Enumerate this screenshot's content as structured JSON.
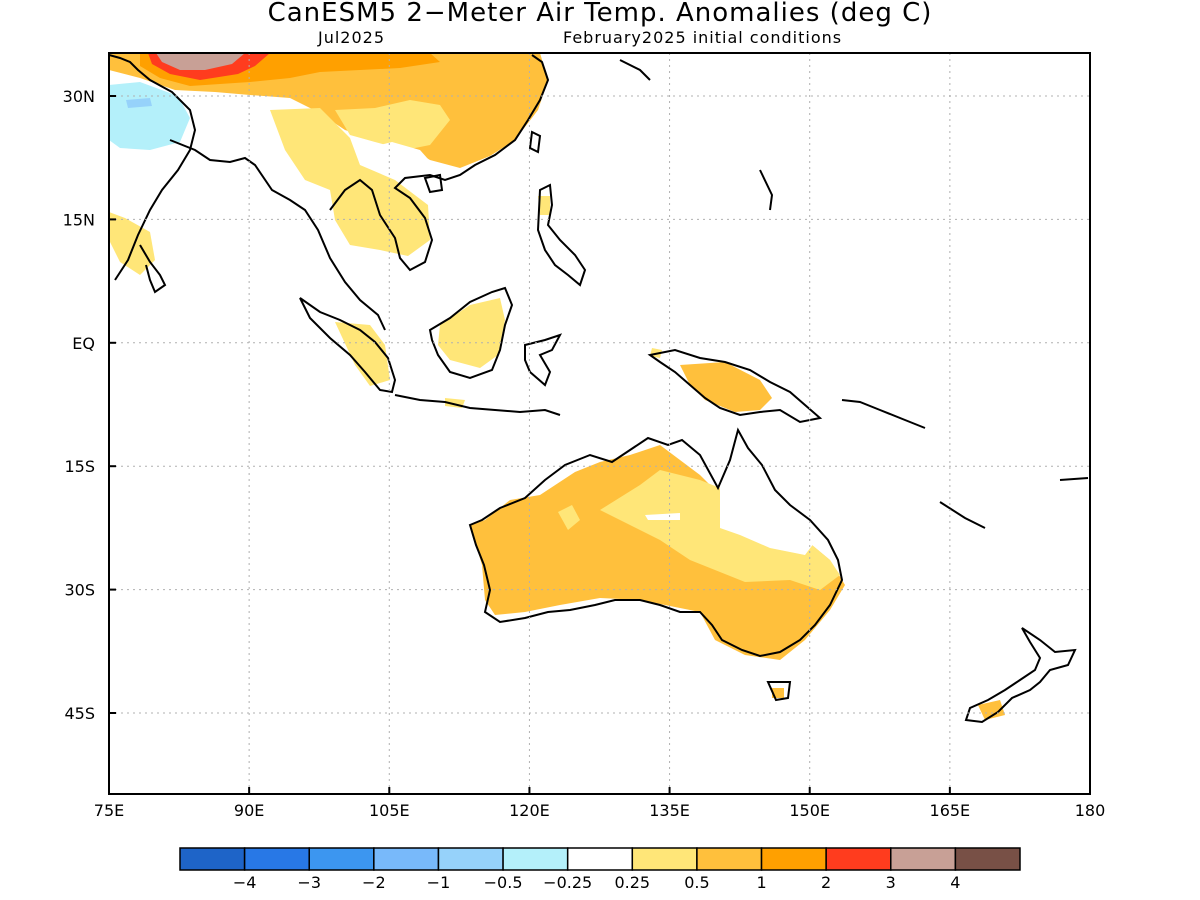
{
  "title": "CanESM5 2−Meter Air Temp. Anomalies (deg C)",
  "subtitle_left": "Jul2025",
  "subtitle_right": "February2025 initial conditions",
  "axes": {
    "lon_labels": [
      "75E",
      "90E",
      "105E",
      "120E",
      "135E",
      "150E",
      "165E",
      "180"
    ],
    "lat_labels": [
      "30N",
      "15N",
      "EQ",
      "15S",
      "30S",
      "45S"
    ]
  },
  "colorbar": {
    "colors": [
      "#1e64c8",
      "#2878e6",
      "#3c96f0",
      "#78b9fa",
      "#96d2fa",
      "#b4f0fa",
      "#ffffff",
      "#ffe678",
      "#ffc03c",
      "#ffa000",
      "#ff3c1e",
      "#c8a096",
      "#785046"
    ],
    "labels": [
      "−4",
      "−3",
      "−2",
      "−1",
      "−0.5",
      "−0.25",
      "0.25",
      "0.5",
      "1",
      "2",
      "3",
      "4"
    ]
  },
  "regions": [
    {
      "name": "tibet-hot",
      "color": "#c8a096"
    },
    {
      "name": "north-red",
      "color": "#ff3c1e"
    },
    {
      "name": "north-orange",
      "color": "#ffa000"
    },
    {
      "name": "china-light-orange",
      "color": "#ffc03c"
    },
    {
      "name": "southeast-asia-yellow",
      "color": "#ffe678"
    },
    {
      "name": "australia-orange",
      "color": "#ffc03c"
    },
    {
      "name": "australia-yellow",
      "color": "#ffe678"
    },
    {
      "name": "india-cold",
      "color": "#b4f0fa"
    }
  ]
}
